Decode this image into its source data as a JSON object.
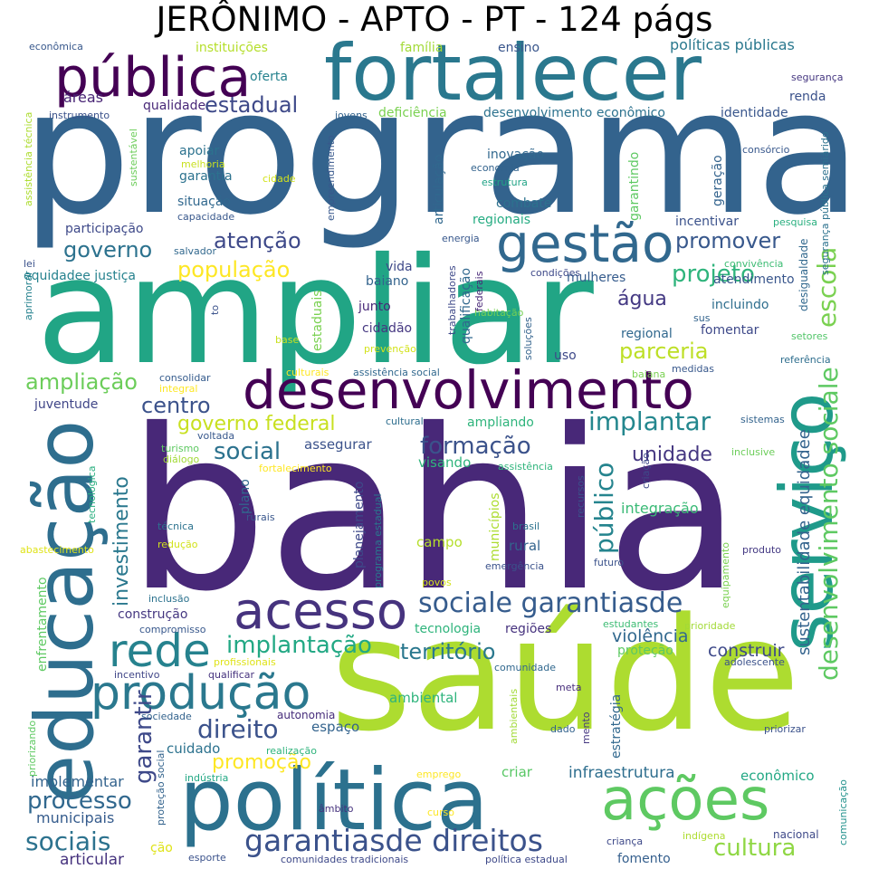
{
  "title": "JERÔNIMO - APTO - PT - 124 págs",
  "words": [
    {
      "text": "programa",
      "color": "#33638d"
    },
    {
      "text": "bahia",
      "color": "#482878"
    },
    {
      "text": "ampliar",
      "color": "#21a585"
    },
    {
      "text": "saúde",
      "color": "#addc30"
    },
    {
      "text": "fortalecer",
      "color": "#2a788e"
    },
    {
      "text": "política",
      "color": "#2c718e"
    },
    {
      "text": "educação",
      "color": "#2e6e8e"
    },
    {
      "text": "serviço",
      "color": "#1f9a8a"
    },
    {
      "text": "desenvolvimento",
      "color": "#440154"
    },
    {
      "text": "pública",
      "color": "#440154"
    },
    {
      "text": "gestão",
      "color": "#31688e"
    },
    {
      "text": "ações",
      "color": "#5ec962"
    },
    {
      "text": "acesso",
      "color": "#46337e"
    },
    {
      "text": "produção",
      "color": "#2a788e"
    },
    {
      "text": "rede",
      "color": "#26828e"
    },
    {
      "text": "sociale garantiasde",
      "color": "#365c8d"
    },
    {
      "text": "garantiasde direitos",
      "color": "#3b528b"
    },
    {
      "text": "desenvolvimento sociale",
      "color": "#5ec962"
    },
    {
      "text": "escola",
      "color": "#7ad151"
    },
    {
      "text": "público",
      "color": "#25848e"
    },
    {
      "text": "investimento",
      "color": "#2a788e"
    },
    {
      "text": "implantar",
      "color": "#24878e"
    },
    {
      "text": "sociais",
      "color": "#2c728e"
    },
    {
      "text": "cultura",
      "color": "#8fd744"
    },
    {
      "text": "processo",
      "color": "#31688e"
    },
    {
      "text": "garantir",
      "color": "#3e4989"
    },
    {
      "text": "direito",
      "color": "#3b528b"
    },
    {
      "text": "formação",
      "color": "#3b528b"
    },
    {
      "text": "implantação",
      "color": "#22a884"
    },
    {
      "text": "território",
      "color": "#2a788e"
    },
    {
      "text": "centro",
      "color": "#3b528b"
    },
    {
      "text": "social",
      "color": "#2c728e"
    },
    {
      "text": "projeto",
      "color": "#2fb47c"
    },
    {
      "text": "população",
      "color": "#fde725"
    },
    {
      "text": "atenção",
      "color": "#3e4989"
    },
    {
      "text": "governo",
      "color": "#2c728e"
    },
    {
      "text": "promover",
      "color": "#38588c"
    },
    {
      "text": "estadual",
      "color": "#3e4989"
    },
    {
      "text": "ampliação",
      "color": "#6ccd5a"
    },
    {
      "text": "governo federal",
      "color": "#c8e020"
    },
    {
      "text": "parceria",
      "color": "#bddf26"
    },
    {
      "text": "promoção",
      "color": "#fde725"
    },
    {
      "text": "unidade",
      "color": "#453781"
    },
    {
      "text": "água",
      "color": "#443983"
    },
    {
      "text": "sustentabilidade equidadee",
      "color": "#33638d"
    },
    {
      "text": "construir",
      "color": "#3e4989"
    },
    {
      "text": "violência",
      "color": "#31688e"
    },
    {
      "text": "infraestrutura",
      "color": "#2e6e8e"
    },
    {
      "text": "articular",
      "color": "#46337e"
    },
    {
      "text": "municipais",
      "color": "#365c8d"
    },
    {
      "text": "implementar",
      "color": "#33638d"
    },
    {
      "text": "cuidado",
      "color": "#2c728e"
    },
    {
      "text": "fomento",
      "color": "#355f8d"
    },
    {
      "text": "integração",
      "color": "#3aba76"
    },
    {
      "text": "rural",
      "color": "#33638d"
    },
    {
      "text": "campo",
      "color": "#b5de2b"
    },
    {
      "text": "visando",
      "color": "#2fb47c"
    },
    {
      "text": "assegurar",
      "color": "#3b528b"
    },
    {
      "text": "ambiental",
      "color": "#2fb47c"
    },
    {
      "text": "espaço",
      "color": "#33638d"
    },
    {
      "text": "autonomia",
      "color": "#472d7b"
    },
    {
      "text": "criar",
      "color": "#58c765"
    },
    {
      "text": "econômico",
      "color": "#22a884"
    },
    {
      "text": "nacional",
      "color": "#3e4989"
    },
    {
      "text": "comunicação",
      "color": "#21918c"
    },
    {
      "text": "instituições",
      "color": "#b5de2b"
    },
    {
      "text": "família",
      "color": "#a2da37"
    },
    {
      "text": "ensino",
      "color": "#39568c"
    },
    {
      "text": "políticas públicas",
      "color": "#2a788e"
    },
    {
      "text": "econômica",
      "color": "#38588c"
    },
    {
      "text": "segurança",
      "color": "#453781"
    },
    {
      "text": "oferta",
      "color": "#26828e"
    },
    {
      "text": "áreas",
      "color": "#482475"
    },
    {
      "text": "qualidade",
      "color": "#482878"
    },
    {
      "text": "deficiência",
      "color": "#7ad151"
    },
    {
      "text": "desenvolvimento econômico",
      "color": "#2c728e"
    },
    {
      "text": "identidade",
      "color": "#39568c"
    },
    {
      "text": "renda",
      "color": "#3b528b"
    },
    {
      "text": "instrumento",
      "color": "#3b528b"
    },
    {
      "text": "jovens",
      "color": "#33638d"
    },
    {
      "text": "apoiar",
      "color": "#2c728e"
    },
    {
      "text": "garantia",
      "color": "#2c728e"
    },
    {
      "text": "situação",
      "color": "#31688e"
    },
    {
      "text": "participação",
      "color": "#3e4989"
    },
    {
      "text": "capacidade",
      "color": "#38588c"
    },
    {
      "text": "melhoria",
      "color": "#c8e020"
    },
    {
      "text": "cidade",
      "color": "#d2e21b"
    },
    {
      "text": "inovação",
      "color": "#31688e"
    },
    {
      "text": "economia",
      "color": "#33638d"
    },
    {
      "text": "estrutura",
      "color": "#20a386"
    },
    {
      "text": "combate",
      "color": "#2c728e"
    },
    {
      "text": "regionais",
      "color": "#25ac82"
    },
    {
      "text": "incentivar",
      "color": "#3b528b"
    },
    {
      "text": "pesquisa",
      "color": "#29af7f"
    },
    {
      "text": "consórcio",
      "color": "#38588c"
    },
    {
      "text": "lei",
      "color": "#3b528b"
    },
    {
      "text": "salvador",
      "color": "#31688e"
    },
    {
      "text": "equidadee justiça",
      "color": "#26828e"
    },
    {
      "text": "baiano",
      "color": "#33638d"
    },
    {
      "text": "vida",
      "color": "#3e4989"
    },
    {
      "text": "mulheres",
      "color": "#365c8d"
    },
    {
      "text": "atendimento",
      "color": "#39568c"
    },
    {
      "text": "convivência",
      "color": "#3dbc74"
    },
    {
      "text": "condições",
      "color": "#3e4989"
    },
    {
      "text": "energia",
      "color": "#38588c"
    },
    {
      "text": "junto",
      "color": "#482878"
    },
    {
      "text": "cidadão",
      "color": "#453781"
    },
    {
      "text": "habitação",
      "color": "#75d054"
    },
    {
      "text": "incluindo",
      "color": "#2e6e8e"
    },
    {
      "text": "regional",
      "color": "#31688e"
    },
    {
      "text": "fomentar",
      "color": "#3e4989"
    },
    {
      "text": "uso",
      "color": "#3e4989"
    },
    {
      "text": "base",
      "color": "#c8e020"
    },
    {
      "text": "prevenção",
      "color": "#d2e21b"
    },
    {
      "text": "sus",
      "color": "#33638d"
    },
    {
      "text": "setores",
      "color": "#52c569"
    },
    {
      "text": "referência",
      "color": "#2e6e8e"
    },
    {
      "text": "consolidar",
      "color": "#365c8d"
    },
    {
      "text": "integral",
      "color": "#fde725"
    },
    {
      "text": "culturais",
      "color": "#fde725"
    },
    {
      "text": "assistência social",
      "color": "#31688e"
    },
    {
      "text": "baiana",
      "color": "#7ad151"
    },
    {
      "text": "medidas",
      "color": "#38588c"
    },
    {
      "text": "juventude",
      "color": "#404688"
    },
    {
      "text": "cultural",
      "color": "#2e6e8e"
    },
    {
      "text": "ampliando",
      "color": "#2fb47c"
    },
    {
      "text": "sistemas",
      "color": "#33638d"
    },
    {
      "text": "inclusive",
      "color": "#6ccd5a"
    },
    {
      "text": "turismo",
      "color": "#5ec962"
    },
    {
      "text": "voltada",
      "color": "#38588c"
    },
    {
      "text": "diálogo",
      "color": "#a2da37"
    },
    {
      "text": "fortalecimento",
      "color": "#fde725"
    },
    {
      "text": "assistência",
      "color": "#2fb47c"
    },
    {
      "text": "plano",
      "color": "#31688e"
    },
    {
      "text": "rurais",
      "color": "#39568c"
    },
    {
      "text": "técnica",
      "color": "#2c728e"
    },
    {
      "text": "redução",
      "color": "#d2e21b"
    },
    {
      "text": "brasil",
      "color": "#2c728e"
    },
    {
      "text": "abastecimento",
      "color": "#dfe318"
    },
    {
      "text": "futuro",
      "color": "#3b528b"
    },
    {
      "text": "emergência",
      "color": "#3b528b"
    },
    {
      "text": "povos",
      "color": "#d2e21b"
    },
    {
      "text": "produto",
      "color": "#443983"
    },
    {
      "text": "inclusão",
      "color": "#2c728e"
    },
    {
      "text": "construção",
      "color": "#453781"
    },
    {
      "text": "compromisso",
      "color": "#38588c"
    },
    {
      "text": "tecnologia",
      "color": "#2fb47c"
    },
    {
      "text": "regiões",
      "color": "#46327e"
    },
    {
      "text": "estudantes",
      "color": "#3dbc74"
    },
    {
      "text": "prioridade",
      "color": "#a2da37"
    },
    {
      "text": "proteção",
      "color": "#5ec962"
    },
    {
      "text": "comunidade",
      "color": "#31688e"
    },
    {
      "text": "adolescente",
      "color": "#3b528b"
    },
    {
      "text": "profissionais",
      "color": "#dfe318"
    },
    {
      "text": "qualificar",
      "color": "#46337e"
    },
    {
      "text": "incentivo",
      "color": "#404688"
    },
    {
      "text": "meta",
      "color": "#472d7b"
    },
    {
      "text": "sociedade",
      "color": "#33638d"
    },
    {
      "text": "realização",
      "color": "#2fb47c"
    },
    {
      "text": "priorizar",
      "color": "#3b528b"
    },
    {
      "text": "emprego",
      "color": "#fde725"
    },
    {
      "text": "indústria",
      "color": "#22a884"
    },
    {
      "text": "curso",
      "color": "#fde725"
    },
    {
      "text": "âmbito",
      "color": "#46337e"
    },
    {
      "text": "esporte",
      "color": "#3b528b"
    },
    {
      "text": "comunidades tradicionais",
      "color": "#3e4989"
    },
    {
      "text": "política estadual",
      "color": "#3e4989"
    },
    {
      "text": "criança",
      "color": "#3e4989"
    },
    {
      "text": "indígena",
      "color": "#addc30"
    },
    {
      "text": "ção",
      "color": "#dfe318"
    },
    {
      "text": "dado",
      "color": "#33638d"
    },
    {
      "text": "assistência técnica",
      "color": "#addc30"
    },
    {
      "text": "sustentável",
      "color": "#6ccd5a"
    },
    {
      "text": "empreendimento",
      "color": "#38588c"
    },
    {
      "text": "articulação",
      "color": "#31688e"
    },
    {
      "text": "garantindo",
      "color": "#5ec962"
    },
    {
      "text": "geração",
      "color": "#33638d"
    },
    {
      "text": "segurança pública semiárido",
      "color": "#2c728e"
    },
    {
      "text": "desigualdade",
      "color": "#31688e"
    },
    {
      "text": "aprimorar",
      "color": "#26828e"
    },
    {
      "text": "to",
      "color": "#3b528b"
    },
    {
      "text": "trabalhadores",
      "color": "#3e4989"
    },
    {
      "text": "qualificação",
      "color": "#31688e"
    },
    {
      "text": "federais",
      "color": "#482878"
    },
    {
      "text": "soluções",
      "color": "#33638d"
    },
    {
      "text": "estaduais",
      "color": "#7ad151"
    },
    {
      "text": "tecnológica",
      "color": "#29af7f"
    },
    {
      "text": "recursos",
      "color": "#3b528b"
    },
    {
      "text": "criação",
      "color": "#3e4989"
    },
    {
      "text": "planejamento",
      "color": "#3e4989"
    },
    {
      "text": "programa estadual",
      "color": "#2a788e"
    },
    {
      "text": "municípios",
      "color": "#addc30"
    },
    {
      "text": "enfrentamento",
      "color": "#5ec962"
    },
    {
      "text": "priorizando",
      "color": "#5ec962"
    },
    {
      "text": "proteção social",
      "color": "#33638d"
    },
    {
      "text": "estratégia",
      "color": "#31688e"
    },
    {
      "text": "ambientais",
      "color": "#a2da37"
    },
    {
      "text": "mento",
      "color": "#453781"
    },
    {
      "text": "equipamento",
      "color": "#7ad151"
    }
  ]
}
